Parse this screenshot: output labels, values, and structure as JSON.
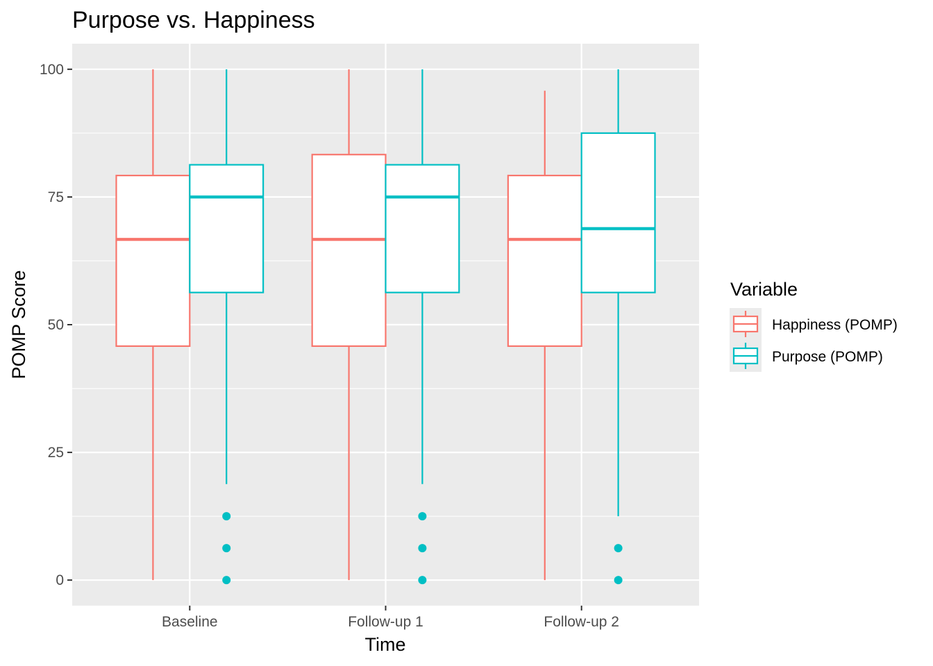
{
  "chart_data": {
    "type": "boxplot",
    "title": "Purpose vs. Happiness",
    "xlabel": "Time",
    "ylabel": "POMP Score",
    "categories": [
      "Baseline",
      "Follow-up 1",
      "Follow-up 2"
    ],
    "ylim": [
      -5,
      105
    ],
    "y_ticks": [
      0,
      25,
      50,
      75,
      100
    ],
    "y_tick_labels": [
      "0",
      "25",
      "50",
      "75",
      "100"
    ],
    "grid": true,
    "legend": {
      "title": "Variable",
      "placement": "right"
    },
    "series": [
      {
        "name": "Happiness (POMP)",
        "color": "#F8766D",
        "boxes": [
          {
            "min": 0,
            "q1": 45.8,
            "median": 66.7,
            "q3": 79.2,
            "max": 100,
            "outliers": []
          },
          {
            "min": 0,
            "q1": 45.8,
            "median": 66.7,
            "q3": 83.3,
            "max": 100,
            "outliers": []
          },
          {
            "min": 0,
            "q1": 45.8,
            "median": 66.7,
            "q3": 79.2,
            "max": 95.8,
            "outliers": []
          }
        ]
      },
      {
        "name": "Purpose (POMP)",
        "color": "#00BFC4",
        "boxes": [
          {
            "min": 18.8,
            "q1": 56.3,
            "median": 75,
            "q3": 81.3,
            "max": 100,
            "outliers": [
              12.5,
              6.25,
              0
            ]
          },
          {
            "min": 18.8,
            "q1": 56.3,
            "median": 75,
            "q3": 81.3,
            "max": 100,
            "outliers": [
              12.5,
              6.25,
              0
            ]
          },
          {
            "min": 12.5,
            "q1": 56.3,
            "median": 68.8,
            "q3": 87.5,
            "max": 100,
            "outliers": [
              6.25,
              0
            ]
          }
        ]
      }
    ]
  }
}
